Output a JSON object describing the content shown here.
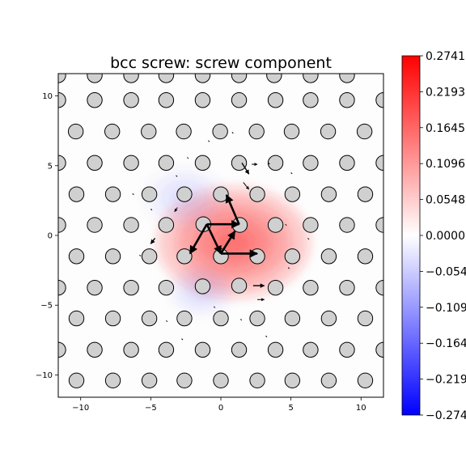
{
  "chart_data": {
    "type": "heatmap",
    "title": "bcc screw: screw component",
    "xlim": [
      -11.6,
      11.6
    ],
    "ylim": [
      -11.6,
      11.6
    ],
    "x_ticks": [
      -10,
      -5,
      0,
      5,
      10
    ],
    "y_ticks": [
      -10,
      -5,
      0,
      5,
      10
    ],
    "x_tick_labels": [
      "−10",
      "−5",
      "0",
      "5",
      "10"
    ],
    "y_tick_labels": [
      "−10",
      "−5",
      "0",
      "5",
      "10"
    ],
    "grid": false,
    "colormap": "bwr",
    "colorbar": {
      "range": [
        -0.2741,
        0.2741
      ],
      "ticks": [
        0.2741,
        0.2193,
        0.1645,
        0.1096,
        0.0548,
        0.0,
        -0.0548,
        -0.1096,
        -0.1645,
        -0.2193,
        -0.2741
      ],
      "tick_labels": [
        "0.2741",
        "0.2193",
        "0.1645",
        "0.1096",
        "0.0548",
        "0.0000",
        "−0.0548",
        "−0.1096",
        "−0.1645",
        "−0.2193",
        "−0.2741"
      ]
    },
    "field_blobs": [
      {
        "x": 0.9,
        "y": -0.5,
        "sx": 3.0,
        "sy": 2.2,
        "value": 0.2741
      },
      {
        "x": -2.6,
        "y": 2.7,
        "sx": 1.6,
        "sy": 1.2,
        "value": -0.06
      },
      {
        "x": -1.4,
        "y": -4.0,
        "sx": 1.3,
        "sy": 1.0,
        "value": -0.045
      }
    ],
    "atoms": [
      {
        "row": 3,
        "xs": [
          -10.3,
          -7.7,
          -5.1,
          -2.6,
          0.0,
          2.6,
          5.1,
          7.7,
          10.3
        ]
      },
      {
        "row": 2,
        "xs": [
          -11.6,
          -9.0,
          -6.4,
          -3.9,
          -1.3,
          1.3,
          3.9,
          6.4,
          9.0,
          11.6
        ]
      },
      {
        "row": 1,
        "xs": [
          -10.3,
          -7.7,
          -5.1,
          -2.6,
          0.0,
          2.6,
          5.1,
          7.7,
          10.3
        ]
      },
      {
        "row": 0,
        "xs": [
          -11.6,
          -9.0,
          -6.4,
          -3.9,
          -1.3,
          1.3,
          3.9,
          6.4,
          9.0,
          11.6
        ]
      },
      {
        "row": -1,
        "xs": [
          -10.3,
          -7.7,
          -5.1,
          -2.6,
          0.0,
          2.6,
          5.1,
          7.7,
          10.3
        ]
      },
      {
        "row": -2,
        "xs": [
          -11.6,
          -9.0,
          -6.4,
          -3.9,
          -1.3,
          1.3,
          3.9,
          6.4,
          9.0,
          11.6
        ]
      },
      {
        "row": -3,
        "xs": [
          -10.3,
          -7.7,
          -5.1,
          -2.6,
          0.0,
          2.6,
          5.1,
          7.7,
          10.3
        ]
      },
      {
        "row": -4,
        "xs": [
          -11.6,
          -9.0,
          -6.4,
          -3.9,
          -1.3,
          1.3,
          3.9,
          6.4,
          9.0,
          11.6
        ]
      }
    ],
    "atom_rows_y": {
      "3": 10.2,
      "2": 7.95,
      "1": 5.7,
      "0": 3.45,
      "-1": 1.2,
      "-2": -1.05,
      "-3": -3.3,
      "-4": -5.55,
      "-5": -7.8,
      "-6": -10.05
    },
    "atom_offsets": [
      {
        "row": 5,
        "xs": [
          -10.3,
          -7.7,
          -5.1,
          -2.6,
          0.0,
          2.6,
          5.1,
          7.7,
          10.3
        ],
        "y": 11.6
      }
    ],
    "arrows": [
      {
        "x1": -1.0,
        "y1": 0.8,
        "x2": 1.3,
        "y2": 0.8,
        "w": 2.6
      },
      {
        "x1": 1.3,
        "y1": 0.8,
        "x2": 0.4,
        "y2": 2.9,
        "w": 2.6
      },
      {
        "x1": -1.0,
        "y1": 0.8,
        "x2": -2.2,
        "y2": -1.3,
        "w": 2.6
      },
      {
        "x1": -1.0,
        "y1": 0.8,
        "x2": 0.0,
        "y2": -1.3,
        "w": 2.6
      },
      {
        "x1": 0.0,
        "y1": -1.3,
        "x2": 1.0,
        "y2": 0.3,
        "w": 2.6
      },
      {
        "x1": 0.0,
        "y1": -1.3,
        "x2": 2.6,
        "y2": -1.3,
        "w": 2.6
      },
      {
        "x1": 1.5,
        "y1": 5.2,
        "x2": 2.0,
        "y2": 4.4,
        "w": 1.4
      },
      {
        "x1": -4.7,
        "y1": -0.2,
        "x2": -5.0,
        "y2": -0.6,
        "w": 1.4
      },
      {
        "x1": 2.3,
        "y1": -3.6,
        "x2": 3.1,
        "y2": -3.6,
        "w": 1.4
      },
      {
        "x1": 2.6,
        "y1": -4.6,
        "x2": 3.1,
        "y2": -4.6,
        "w": 1.0
      },
      {
        "x1": 1.6,
        "y1": 3.8,
        "x2": 2.0,
        "y2": 3.3,
        "w": 1.0
      },
      {
        "x1": -3.1,
        "y1": 2.0,
        "x2": -3.3,
        "y2": 1.7,
        "w": 1.0
      },
      {
        "x1": 2.2,
        "y1": 5.1,
        "x2": 2.6,
        "y2": 5.1,
        "w": 1.0
      }
    ]
  }
}
